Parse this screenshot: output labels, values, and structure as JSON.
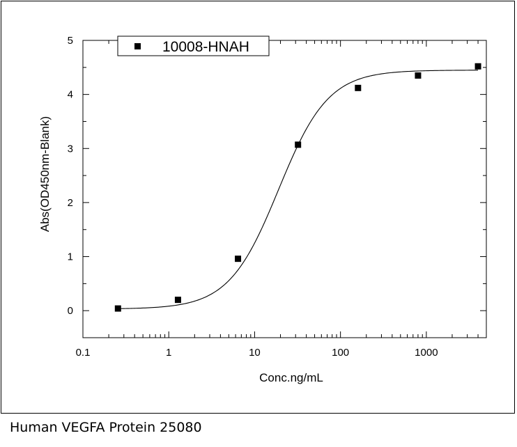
{
  "caption": "Human VEGFA Protein 25080",
  "chart_data": {
    "type": "scatter",
    "xlabel": "Conc.ng/mL",
    "ylabel": "Abs(OD450nm-Blank)",
    "xscale": "log",
    "xlim": [
      0.1,
      5000
    ],
    "ylim": [
      -0.5,
      5
    ],
    "xticks": [
      0.1,
      1,
      10,
      100,
      1000
    ],
    "xtick_labels": [
      "0.1",
      "1",
      "10",
      "100",
      "1000"
    ],
    "yticks": [
      0,
      1,
      2,
      3,
      4,
      5
    ],
    "ytick_labels": [
      "0",
      "1",
      "2",
      "3",
      "4",
      "5"
    ],
    "grid": false,
    "legend_position": "top-left",
    "series": [
      {
        "name": "10008-HNAH",
        "marker": "square",
        "color": "#000000",
        "x": [
          0.256,
          1.28,
          6.4,
          32,
          160,
          800,
          4000
        ],
        "y": [
          0.04,
          0.2,
          0.96,
          3.07,
          4.12,
          4.35,
          4.52
        ],
        "fit": "4PL",
        "fit_params": {
          "bottom": 0.03,
          "top": 4.45,
          "ec50": 19,
          "hill": 1.5
        }
      }
    ]
  }
}
